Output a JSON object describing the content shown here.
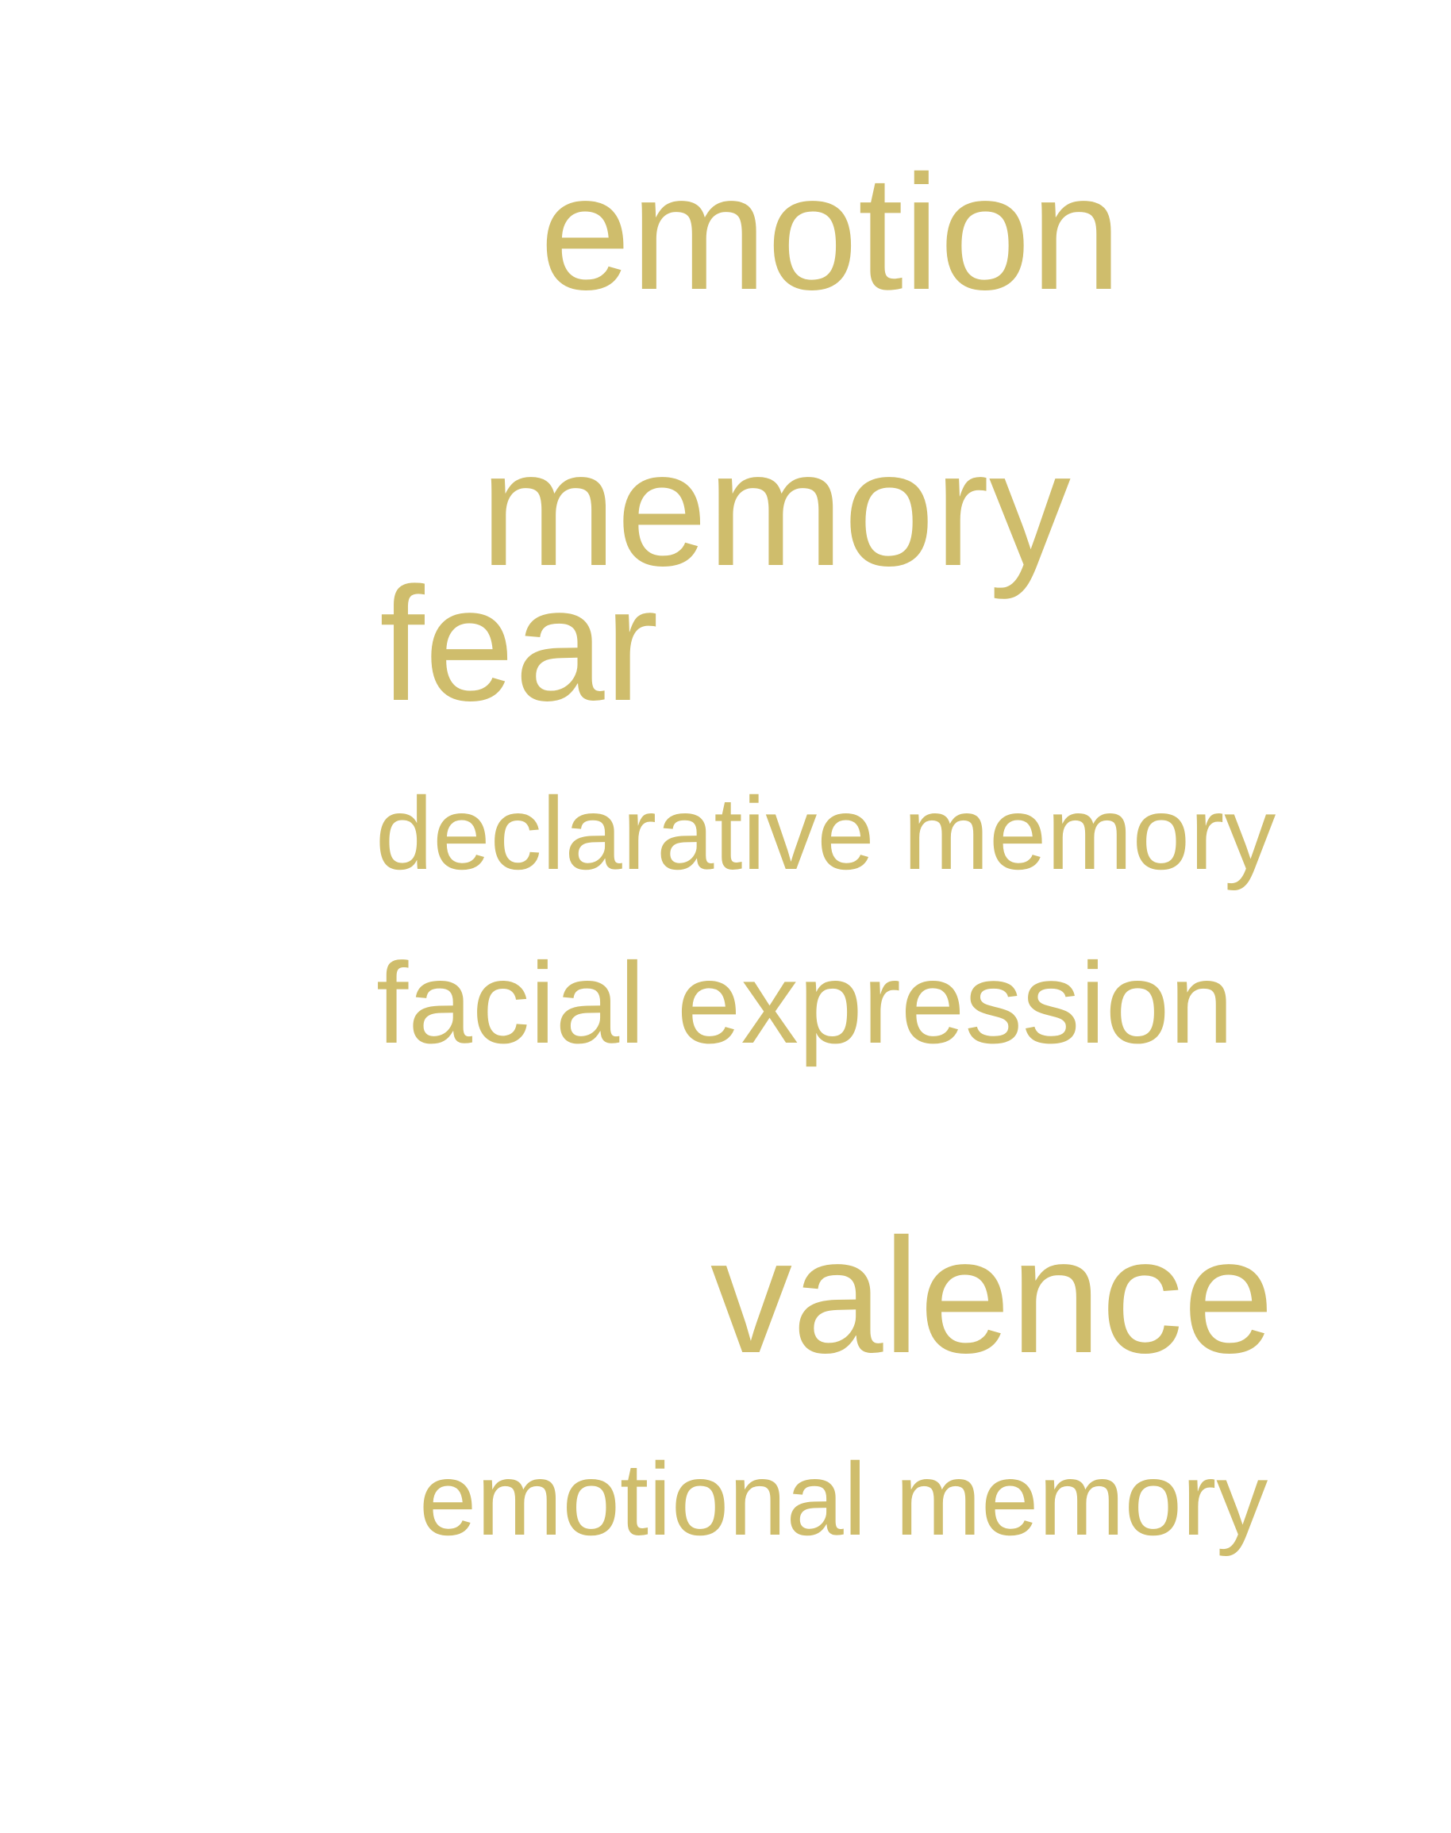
{
  "theme": {
    "text_color": "#cfbd6c",
    "background": "#ffffff"
  },
  "words": [
    {
      "id": "emotion",
      "text": "emotion"
    },
    {
      "id": "memory",
      "text": "memory"
    },
    {
      "id": "fear",
      "text": "fear"
    },
    {
      "id": "declarative_memory",
      "text": "declarative memory"
    },
    {
      "id": "facial_expression",
      "text": "facial expression"
    },
    {
      "id": "valence",
      "text": "valence"
    },
    {
      "id": "emotional_memory",
      "text": "emotional memory"
    }
  ]
}
